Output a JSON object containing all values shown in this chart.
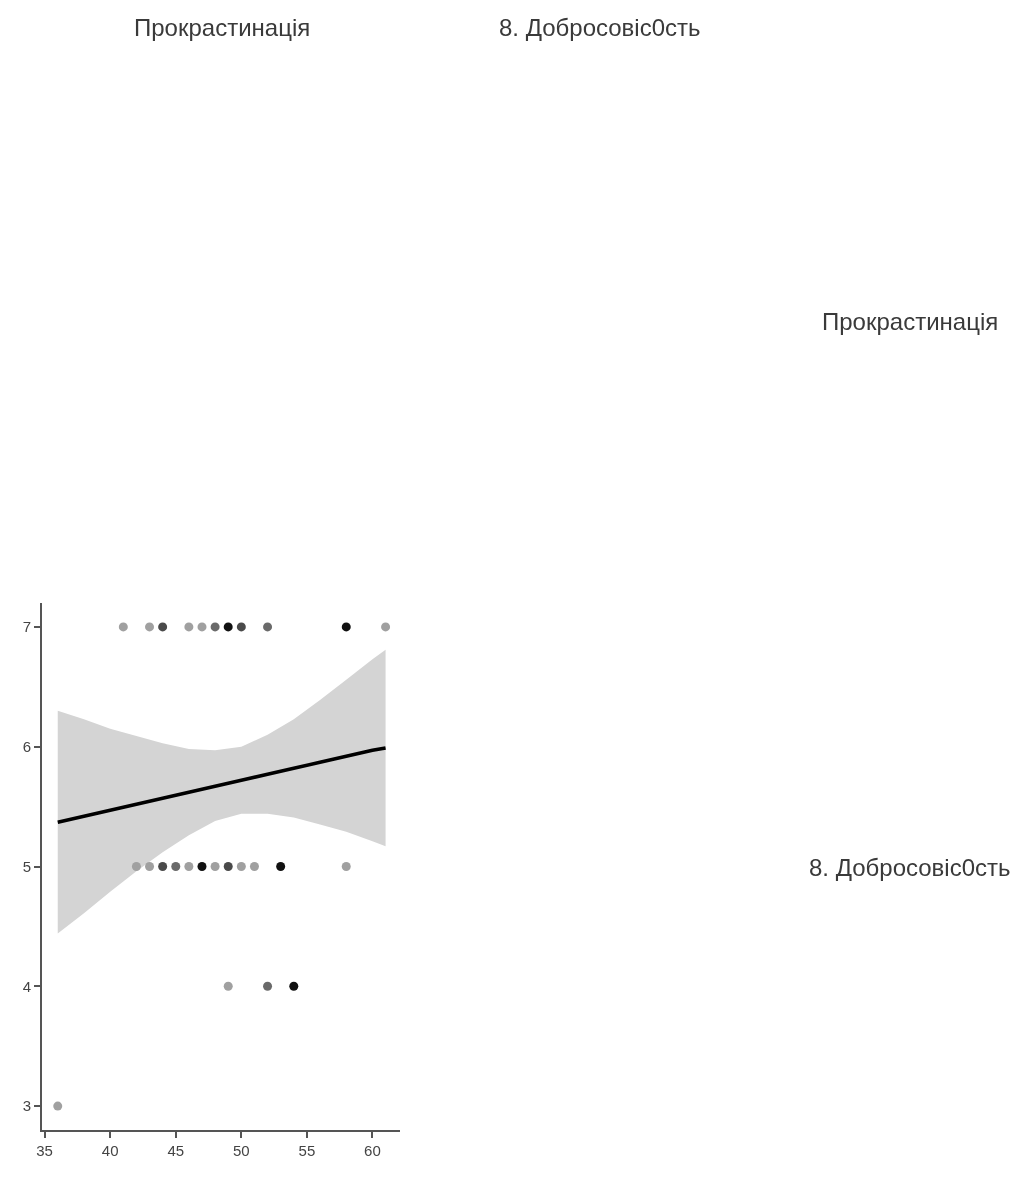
{
  "chart_data": {
    "type": "scatter",
    "annotations": [
      "Прокрастинація",
      "8. Добросовіс0сть",
      "Прокрастинація",
      "8. Добросовіс0сть"
    ],
    "xlim": [
      34.8,
      62.1
    ],
    "ylim": [
      2.8,
      7.2
    ],
    "xticks": [
      35,
      40,
      45,
      50,
      55,
      60
    ],
    "yticks": [
      3,
      4,
      5,
      6,
      7
    ],
    "series": [
      {
        "type": "line",
        "marker": "none",
        "color": "#000000",
        "x": [
          36,
          38,
          40,
          42,
          44,
          46,
          48,
          50,
          52,
          54,
          56,
          58,
          60,
          61
        ],
        "values": [
          5.37,
          5.42,
          5.47,
          5.52,
          5.57,
          5.62,
          5.67,
          5.72,
          5.77,
          5.82,
          5.87,
          5.92,
          5.97,
          5.99
        ],
        "upper": [
          6.3,
          6.23,
          6.15,
          6.09,
          6.03,
          5.98,
          5.97,
          6.0,
          6.1,
          6.23,
          6.39,
          6.56,
          6.73,
          6.81
        ],
        "lower": [
          4.44,
          4.61,
          4.79,
          4.96,
          5.12,
          5.26,
          5.38,
          5.44,
          5.44,
          5.41,
          5.35,
          5.29,
          5.21,
          5.17
        ]
      },
      {
        "marker": "circle",
        "x": [
          41,
          43,
          44,
          46,
          47,
          48,
          49,
          50,
          52,
          58,
          61,
          42,
          43,
          44,
          45,
          46,
          47,
          48,
          49,
          50,
          51,
          53,
          58,
          49,
          52,
          54,
          36
        ],
        "values": [
          7,
          7,
          7,
          7,
          7,
          7,
          7,
          7,
          7,
          7,
          7,
          5,
          5,
          5,
          5,
          5,
          5,
          5,
          5,
          5,
          5,
          5,
          5,
          4,
          4,
          4,
          3
        ],
        "colors": [
          "#a0a0a0",
          "#a0a0a0",
          "#4a4a4a",
          "#a0a0a0",
          "#a0a0a0",
          "#6a6a6a",
          "#111111",
          "#4a4a4a",
          "#6a6a6a",
          "#111111",
          "#a0a0a0",
          "#a0a0a0",
          "#a0a0a0",
          "#4a4a4a",
          "#6a6a6a",
          "#a0a0a0",
          "#111111",
          "#a0a0a0",
          "#4a4a4a",
          "#a0a0a0",
          "#a0a0a0",
          "#111111",
          "#a0a0a0",
          "#a0a0a0",
          "#6a6a6a",
          "#111111",
          "#a0a0a0"
        ]
      }
    ]
  }
}
